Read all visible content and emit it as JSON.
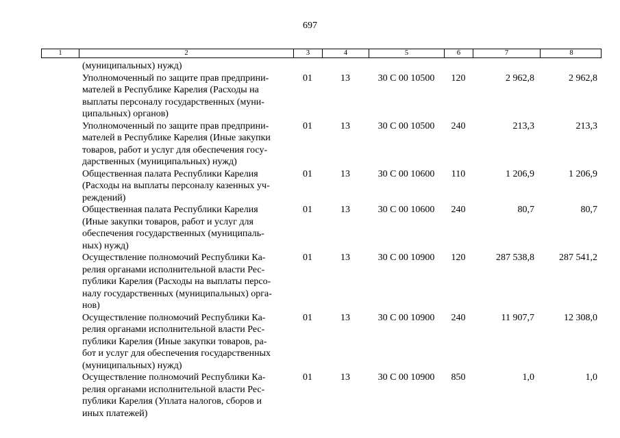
{
  "page": {
    "number": "697"
  },
  "table": {
    "header": [
      "1",
      "2",
      "3",
      "4",
      "5",
      "6",
      "7",
      "8"
    ],
    "rows": [
      {
        "name": "(муниципальных) нужд)",
        "c3": "",
        "c4": "",
        "c5": "",
        "c6": "",
        "c7": "",
        "c8": ""
      },
      {
        "name": "Уполномоченный по защите прав предприни-\nмателей в Республике Карелия (Расходы на\nвыплаты персоналу государственных (муни-\nципальных) органов)",
        "c3": "01",
        "c4": "13",
        "c5": "30 С 00 10500",
        "c6": "120",
        "c7": "2 962,8",
        "c8": "2 962,8"
      },
      {
        "name": "Уполномоченный по защите прав предприни-\nмателей в Республике Карелия (Иные закупки\nтоваров, работ и услуг для обеспечения госу-\nдарственных (муниципальных) нужд)",
        "c3": "01",
        "c4": "13",
        "c5": "30 С 00 10500",
        "c6": "240",
        "c7": "213,3",
        "c8": "213,3"
      },
      {
        "name": "Общественная палата Республики Карелия\n(Расходы на выплаты персоналу казенных уч-\nреждений)",
        "c3": "01",
        "c4": "13",
        "c5": "30 С 00 10600",
        "c6": "110",
        "c7": "1 206,9",
        "c8": "1 206,9"
      },
      {
        "name": "Общественная палата Республики Карелия\n(Иные закупки товаров, работ и услуг для\nобеспечения государственных (муниципаль-\nных) нужд)",
        "c3": "01",
        "c4": "13",
        "c5": "30 С 00 10600",
        "c6": "240",
        "c7": "80,7",
        "c8": "80,7"
      },
      {
        "name": "Осуществление полномочий Республики Ка-\nрелия органами исполнительной власти Рес-\nпублики Карелия (Расходы на выплаты персо-\nналу государственных (муниципальных) орга-\nнов)",
        "c3": "01",
        "c4": "13",
        "c5": "30 С 00 10900",
        "c6": "120",
        "c7": "287 538,8",
        "c8": "287 541,2"
      },
      {
        "name": "Осуществление полномочий Республики Ка-\nрелия органами исполнительной власти Рес-\nпублики Карелия (Иные закупки товаров, ра-\nбот и услуг для обеспечения государственных\n(муниципальных) нужд)",
        "c3": "01",
        "c4": "13",
        "c5": "30 С 00 10900",
        "c6": "240",
        "c7": "11 907,7",
        "c8": "12 308,0"
      },
      {
        "name": "Осуществление полномочий Республики Ка-\nрелия органами исполнительной власти Рес-\nпублики Карелия (Уплата налогов, сборов и\nиных платежей)",
        "c3": "01",
        "c4": "13",
        "c5": "30 С 00 10900",
        "c6": "850",
        "c7": "1,0",
        "c8": "1,0"
      }
    ]
  }
}
